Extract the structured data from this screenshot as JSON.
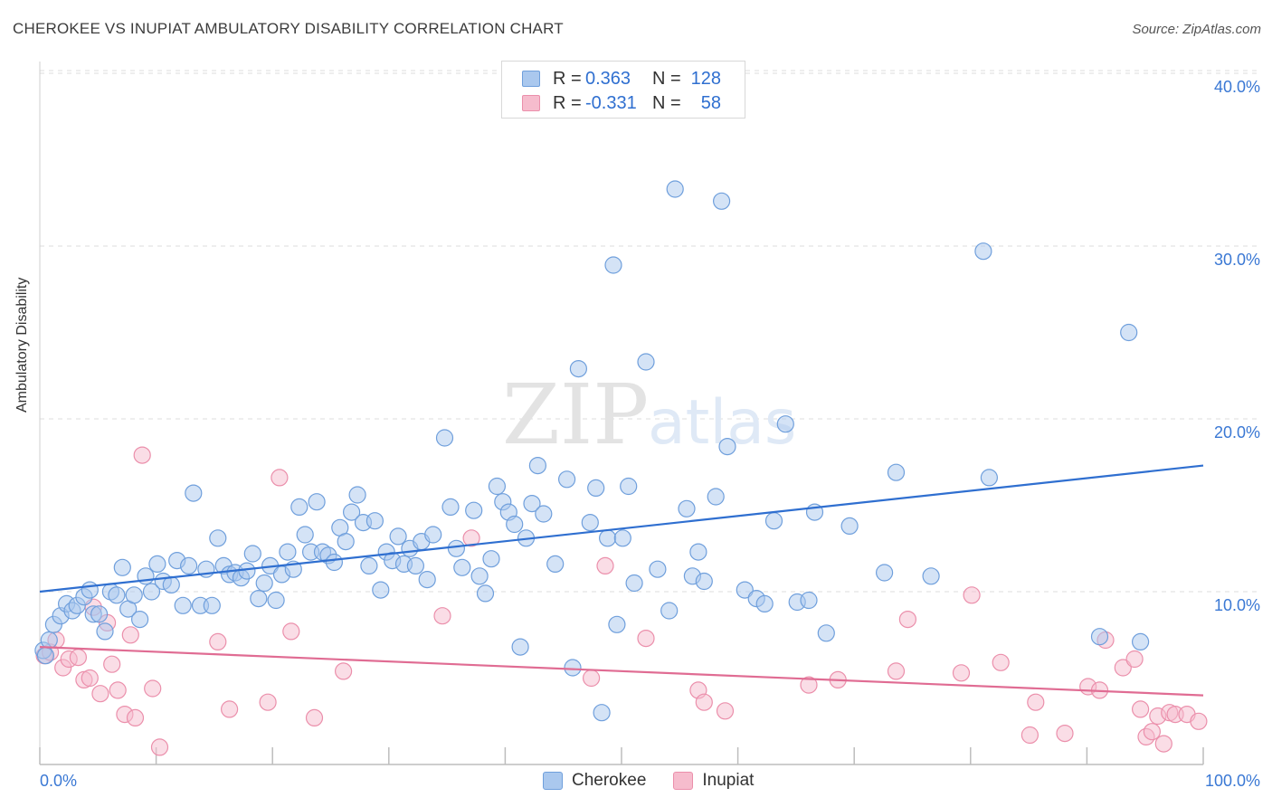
{
  "header": {
    "title": "CHEROKEE VS INUPIAT AMBULATORY DISABILITY CORRELATION CHART",
    "source": "Source: ZipAtlas.com"
  },
  "watermark": {
    "zip": "ZIP",
    "atlas": "atlas"
  },
  "legend": {
    "rows": [
      {
        "r_label": "R =",
        "r_value": "0.363",
        "n_label": "N =",
        "n_value": "128"
      },
      {
        "r_label": "R =",
        "r_value": "-0.331",
        "n_label": "N =",
        "n_value": "58"
      }
    ]
  },
  "bottom_legend": {
    "series1": "Cherokee",
    "series2": "Inupiat"
  },
  "colors": {
    "cherokee_fill": "#aac8ee",
    "cherokee_stroke": "#6f9fdc",
    "cherokee_line": "#2f6fd0",
    "inupiat_fill": "#f6bccd",
    "inupiat_stroke": "#eb8fab",
    "inupiat_line": "#e06c93",
    "tick_label": "#3a78d4",
    "grid": "#dcdcdc"
  },
  "chart_data": {
    "type": "scatter",
    "title": "CHEROKEE VS INUPIAT AMBULATORY DISABILITY CORRELATION CHART",
    "xlabel": "",
    "ylabel": "Ambulatory Disability",
    "xlim": [
      0,
      100
    ],
    "ylim": [
      0,
      42
    ],
    "x_tick_labels": [
      "0.0%",
      "100.0%"
    ],
    "y_ticks": [
      10,
      20,
      30,
      40
    ],
    "y_tick_labels": [
      "10.0%",
      "20.0%",
      "30.0%",
      "40.0%"
    ],
    "grid": true,
    "legend_position": "top-center",
    "series": [
      {
        "name": "Cherokee",
        "r": 0.363,
        "n": 128,
        "trend": [
          [
            0,
            10.0
          ],
          [
            100,
            17.3
          ]
        ],
        "points": [
          [
            0.3,
            6.6
          ],
          [
            0.5,
            6.3
          ],
          [
            0.8,
            7.2
          ],
          [
            1.2,
            8.1
          ],
          [
            1.8,
            8.6
          ],
          [
            2.3,
            9.3
          ],
          [
            2.8,
            8.9
          ],
          [
            3.2,
            9.2
          ],
          [
            3.8,
            9.7
          ],
          [
            4.3,
            10.1
          ],
          [
            4.6,
            8.7
          ],
          [
            5.1,
            8.7
          ],
          [
            5.6,
            7.7
          ],
          [
            6.1,
            10.0
          ],
          [
            6.6,
            9.8
          ],
          [
            7.1,
            11.4
          ],
          [
            7.6,
            9.0
          ],
          [
            8.1,
            9.8
          ],
          [
            8.6,
            8.4
          ],
          [
            9.1,
            10.9
          ],
          [
            9.6,
            10.0
          ],
          [
            10.1,
            11.6
          ],
          [
            10.6,
            10.6
          ],
          [
            11.3,
            10.4
          ],
          [
            11.8,
            11.8
          ],
          [
            12.3,
            9.2
          ],
          [
            12.8,
            11.5
          ],
          [
            13.2,
            15.7
          ],
          [
            13.8,
            9.2
          ],
          [
            14.3,
            11.3
          ],
          [
            14.8,
            9.2
          ],
          [
            15.3,
            13.1
          ],
          [
            15.8,
            11.5
          ],
          [
            16.3,
            11.0
          ],
          [
            16.8,
            11.1
          ],
          [
            17.3,
            10.8
          ],
          [
            17.8,
            11.2
          ],
          [
            18.3,
            12.2
          ],
          [
            18.8,
            9.6
          ],
          [
            19.3,
            10.5
          ],
          [
            19.8,
            11.5
          ],
          [
            20.3,
            9.5
          ],
          [
            20.8,
            11.0
          ],
          [
            21.3,
            12.3
          ],
          [
            21.8,
            11.3
          ],
          [
            22.3,
            14.9
          ],
          [
            22.8,
            13.3
          ],
          [
            23.3,
            12.3
          ],
          [
            23.8,
            15.2
          ],
          [
            24.3,
            12.3
          ],
          [
            24.8,
            12.1
          ],
          [
            25.3,
            11.7
          ],
          [
            25.8,
            13.7
          ],
          [
            26.3,
            12.9
          ],
          [
            26.8,
            14.6
          ],
          [
            27.3,
            15.6
          ],
          [
            27.8,
            14.0
          ],
          [
            28.3,
            11.5
          ],
          [
            28.8,
            14.1
          ],
          [
            29.3,
            10.1
          ],
          [
            29.8,
            12.3
          ],
          [
            30.3,
            11.8
          ],
          [
            30.8,
            13.2
          ],
          [
            31.3,
            11.6
          ],
          [
            31.8,
            12.5
          ],
          [
            32.3,
            11.5
          ],
          [
            32.8,
            12.9
          ],
          [
            33.3,
            10.7
          ],
          [
            33.8,
            13.3
          ],
          [
            34.8,
            18.9
          ],
          [
            35.3,
            14.9
          ],
          [
            35.8,
            12.5
          ],
          [
            36.3,
            11.4
          ],
          [
            37.3,
            14.7
          ],
          [
            37.8,
            10.9
          ],
          [
            38.3,
            9.9
          ],
          [
            38.8,
            11.9
          ],
          [
            39.3,
            16.1
          ],
          [
            39.8,
            15.2
          ],
          [
            40.3,
            14.6
          ],
          [
            40.8,
            13.9
          ],
          [
            41.3,
            6.8
          ],
          [
            41.8,
            13.1
          ],
          [
            42.3,
            15.1
          ],
          [
            42.8,
            17.3
          ],
          [
            43.3,
            14.5
          ],
          [
            44.3,
            11.6
          ],
          [
            45.3,
            16.5
          ],
          [
            45.8,
            5.6
          ],
          [
            46.3,
            22.9
          ],
          [
            47.3,
            14.0
          ],
          [
            47.8,
            16.0
          ],
          [
            48.3,
            3.0
          ],
          [
            48.8,
            13.1
          ],
          [
            49.3,
            28.9
          ],
          [
            49.6,
            8.1
          ],
          [
            50.1,
            13.1
          ],
          [
            50.6,
            16.1
          ],
          [
            51.1,
            10.5
          ],
          [
            52.1,
            23.3
          ],
          [
            53.1,
            11.3
          ],
          [
            54.1,
            8.9
          ],
          [
            54.6,
            33.3
          ],
          [
            55.6,
            14.8
          ],
          [
            56.1,
            10.9
          ],
          [
            56.6,
            12.3
          ],
          [
            57.1,
            10.6
          ],
          [
            58.1,
            15.5
          ],
          [
            58.6,
            32.6
          ],
          [
            59.1,
            18.4
          ],
          [
            60.6,
            10.1
          ],
          [
            61.6,
            9.6
          ],
          [
            62.3,
            9.3
          ],
          [
            63.1,
            14.1
          ],
          [
            64.1,
            19.7
          ],
          [
            65.1,
            9.4
          ],
          [
            66.1,
            9.5
          ],
          [
            66.6,
            14.6
          ],
          [
            67.6,
            7.6
          ],
          [
            69.6,
            13.8
          ],
          [
            72.6,
            11.1
          ],
          [
            73.6,
            16.9
          ],
          [
            76.6,
            10.9
          ],
          [
            81.1,
            29.7
          ],
          [
            81.6,
            16.6
          ],
          [
            91.1,
            7.4
          ],
          [
            93.6,
            25.0
          ],
          [
            94.6,
            7.1
          ]
        ]
      },
      {
        "name": "Inupiat",
        "r": -0.331,
        "n": 58,
        "trend": [
          [
            0,
            6.8
          ],
          [
            100,
            4.0
          ]
        ],
        "points": [
          [
            0.4,
            6.3
          ],
          [
            0.9,
            6.5
          ],
          [
            1.4,
            7.2
          ],
          [
            2.0,
            5.6
          ],
          [
            2.5,
            6.1
          ],
          [
            3.3,
            6.2
          ],
          [
            3.8,
            4.9
          ],
          [
            4.3,
            5.0
          ],
          [
            4.6,
            9.1
          ],
          [
            5.2,
            4.1
          ],
          [
            5.8,
            8.2
          ],
          [
            6.2,
            5.8
          ],
          [
            6.7,
            4.3
          ],
          [
            7.3,
            2.9
          ],
          [
            7.8,
            7.5
          ],
          [
            8.2,
            2.7
          ],
          [
            8.8,
            17.9
          ],
          [
            9.7,
            4.4
          ],
          [
            10.3,
            1.0
          ],
          [
            15.3,
            7.1
          ],
          [
            16.3,
            3.2
          ],
          [
            19.6,
            3.6
          ],
          [
            20.6,
            16.6
          ],
          [
            21.6,
            7.7
          ],
          [
            23.6,
            2.7
          ],
          [
            26.1,
            5.4
          ],
          [
            34.6,
            8.6
          ],
          [
            37.1,
            13.1
          ],
          [
            47.4,
            5.0
          ],
          [
            48.6,
            11.5
          ],
          [
            52.1,
            7.3
          ],
          [
            56.6,
            4.3
          ],
          [
            57.1,
            3.6
          ],
          [
            58.9,
            3.1
          ],
          [
            66.1,
            4.6
          ],
          [
            68.6,
            4.9
          ],
          [
            73.6,
            5.4
          ],
          [
            74.6,
            8.4
          ],
          [
            79.2,
            5.3
          ],
          [
            80.1,
            9.8
          ],
          [
            82.6,
            5.9
          ],
          [
            85.1,
            1.7
          ],
          [
            85.6,
            3.6
          ],
          [
            88.1,
            1.8
          ],
          [
            90.1,
            4.5
          ],
          [
            91.1,
            4.3
          ],
          [
            91.6,
            7.2
          ],
          [
            93.1,
            5.6
          ],
          [
            94.1,
            6.1
          ],
          [
            94.6,
            3.2
          ],
          [
            95.1,
            1.6
          ],
          [
            95.6,
            1.9
          ],
          [
            96.1,
            2.8
          ],
          [
            96.6,
            1.2
          ],
          [
            97.1,
            3.0
          ],
          [
            97.6,
            2.9
          ],
          [
            98.6,
            2.9
          ],
          [
            99.6,
            2.5
          ]
        ]
      }
    ]
  }
}
